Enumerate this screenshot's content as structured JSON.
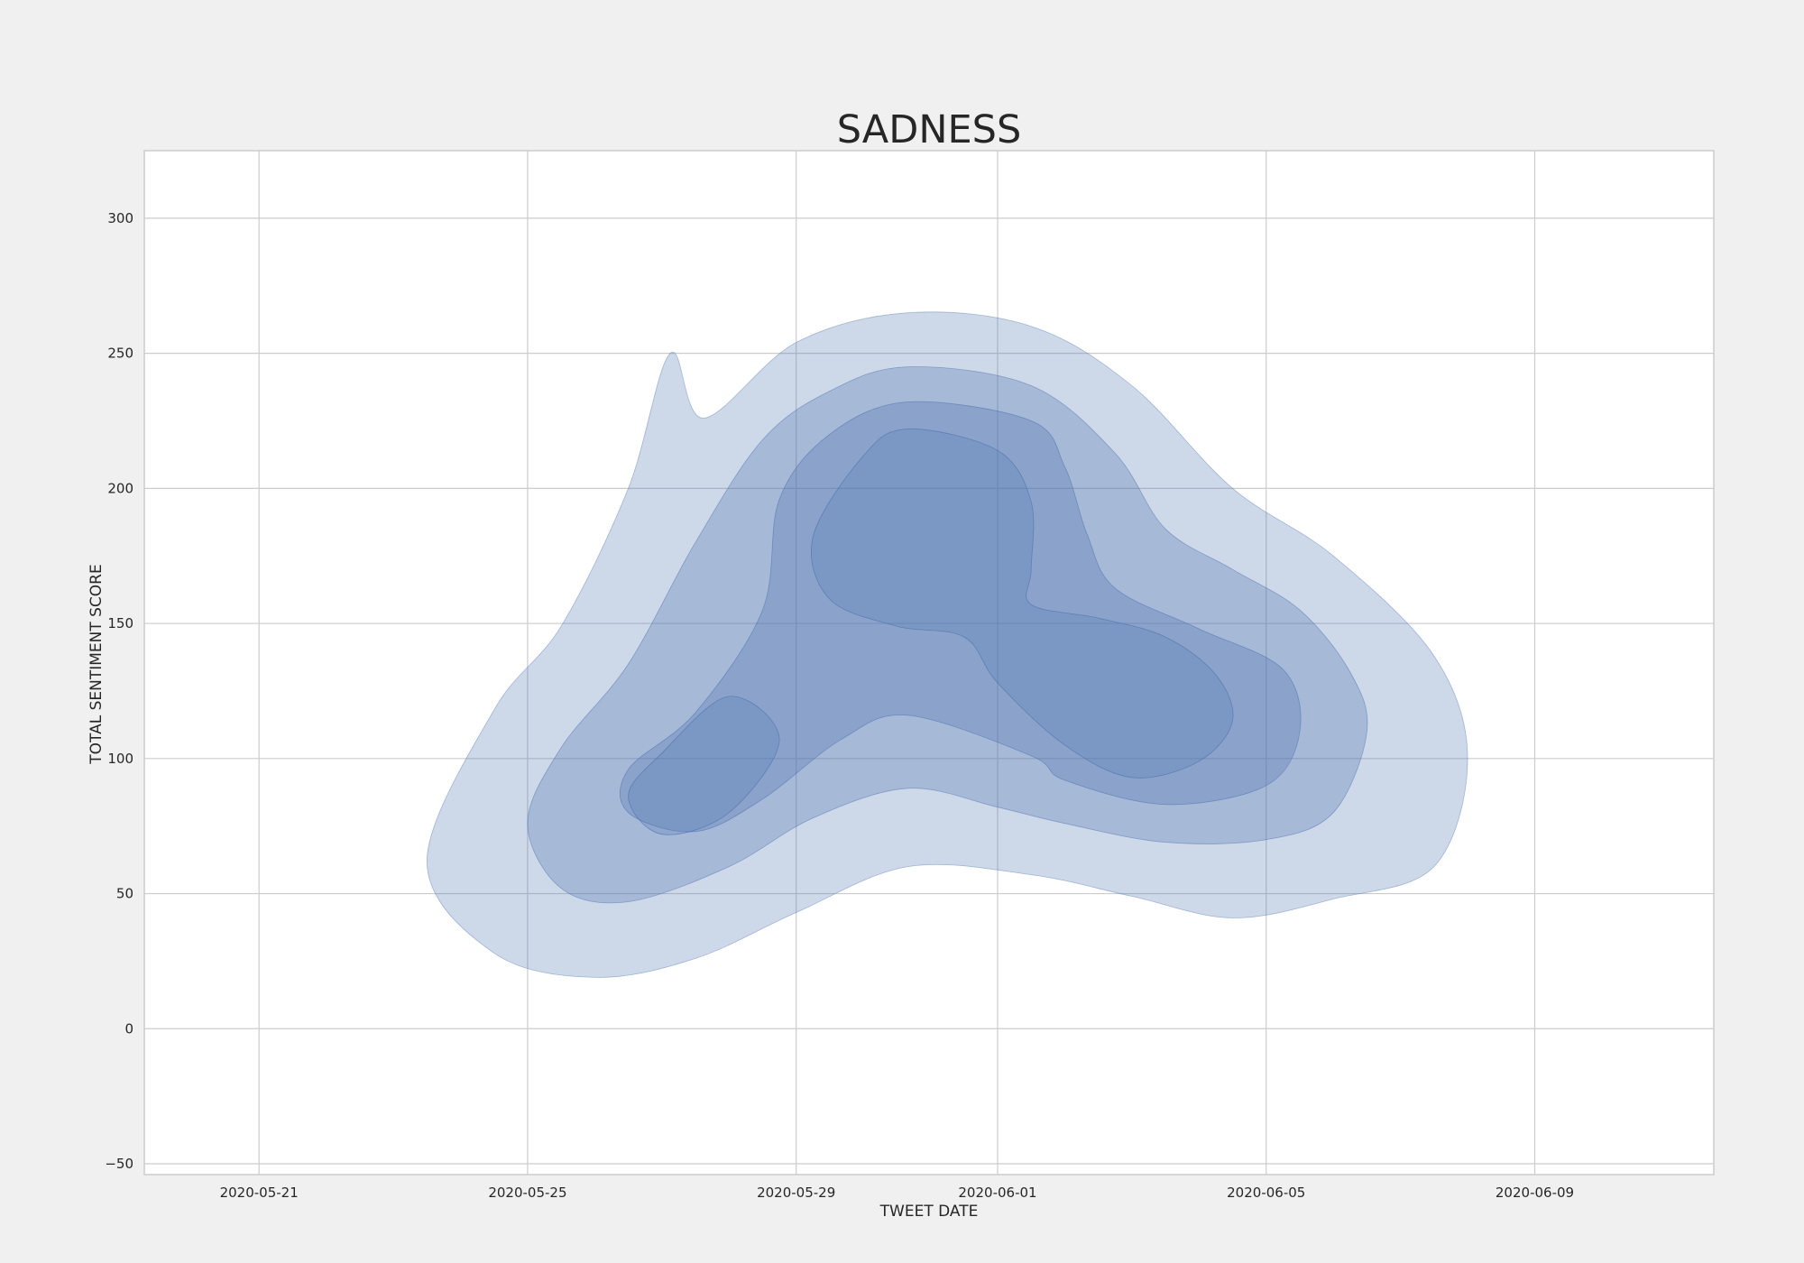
{
  "chart_data": {
    "type": "kde_contour",
    "title": "SADNESS",
    "xlabel": "TWEET DATE",
    "ylabel": "TOTAL SENTIMENT SCORE",
    "x_ticks": [
      "2020-05-21",
      "2020-05-25",
      "2020-05-29",
      "2020-06-01",
      "2020-06-05",
      "2020-06-09"
    ],
    "y_ticks": [
      -50,
      0,
      50,
      100,
      150,
      200,
      250,
      300
    ],
    "xlim": [
      "2020-05-19 07:00",
      "2020-06-11 16:00"
    ],
    "ylim": [
      -54,
      325
    ],
    "grid": true,
    "fill_color": "#4c72b0",
    "contours": [
      {
        "level": 1,
        "opacity": 0.28,
        "polygons": [
          [
            [
              "2020-05-27 03:00",
              250
            ],
            [
              "2020-05-27 15:00",
              226
            ],
            [
              "2020-05-29 00:00",
              254
            ],
            [
              "2020-05-30 16:00",
              265
            ],
            [
              "2020-06-01 12:00",
              260
            ],
            [
              "2020-06-03 00:00",
              238
            ],
            [
              "2020-06-04 12:00",
              200
            ],
            [
              "2020-06-06 00:00",
              175
            ],
            [
              "2020-06-07 12:00",
              138
            ],
            [
              "2020-06-08 00:00",
              100
            ],
            [
              "2020-06-07 12:00",
              60
            ],
            [
              "2020-06-06 00:00",
              48
            ],
            [
              "2020-06-04 12:00",
              41
            ],
            [
              "2020-06-03 00:00",
              49
            ],
            [
              "2020-06-01 12:00",
              57
            ],
            [
              "2020-05-30 16:00",
              60
            ],
            [
              "2020-05-29 00:00",
              43
            ],
            [
              "2020-05-27 12:00",
              26
            ],
            [
              "2020-05-26 00:00",
              19
            ],
            [
              "2020-05-24 12:00",
              28
            ],
            [
              "2020-05-23 12:00",
              62
            ],
            [
              "2020-05-24 12:00",
              118
            ],
            [
              "2020-05-25 12:00",
              149
            ],
            [
              "2020-05-26 12:00",
              200
            ]
          ]
        ]
      },
      {
        "level": 2,
        "opacity": 0.3,
        "polygons": [
          [
            [
              "2020-05-27 12:00",
              180
            ],
            [
              "2020-05-28 12:00",
              218
            ],
            [
              "2020-05-29 12:00",
              236
            ],
            [
              "2020-05-30 16:00",
              245
            ],
            [
              "2020-06-01 12:00",
              238
            ],
            [
              "2020-06-02 18:00",
              213
            ],
            [
              "2020-06-03 12:00",
              185
            ],
            [
              "2020-06-04 12:00",
              170
            ],
            [
              "2020-06-05 12:00",
              155
            ],
            [
              "2020-06-06 06:00",
              132
            ],
            [
              "2020-06-06 12:00",
              110
            ],
            [
              "2020-06-06 00:00",
              80
            ],
            [
              "2020-06-05 00:00",
              70
            ],
            [
              "2020-06-03 12:00",
              69
            ],
            [
              "2020-06-02 00:00",
              76
            ],
            [
              "2020-06-01 00:00",
              82
            ],
            [
              "2020-05-30 16:00",
              89
            ],
            [
              "2020-05-29 06:00",
              78
            ],
            [
              "2020-05-28 00:00",
              60
            ],
            [
              "2020-05-26 12:00",
              47
            ],
            [
              "2020-05-25 12:00",
              52
            ],
            [
              "2020-05-25 00:00",
              76
            ],
            [
              "2020-05-25 12:00",
              104
            ],
            [
              "2020-05-26 12:00",
              135
            ]
          ]
        ]
      },
      {
        "level": 3,
        "opacity": 0.3,
        "polygons": [
          [
            [
              "2020-05-28 12:00",
              155
            ],
            [
              "2020-05-28 18:00",
              196
            ],
            [
              "2020-05-29 12:00",
              220
            ],
            [
              "2020-05-30 16:00",
              232
            ],
            [
              "2020-06-01 12:00",
              225
            ],
            [
              "2020-06-02 00:00",
              208
            ],
            [
              "2020-06-02 08:00",
              183
            ],
            [
              "2020-06-02 18:00",
              163
            ],
            [
              "2020-06-04 00:00",
              148
            ],
            [
              "2020-06-05 06:00",
              133
            ],
            [
              "2020-06-05 12:00",
              110
            ],
            [
              "2020-06-05 00:00",
              90
            ],
            [
              "2020-06-03 12:00",
              83
            ],
            [
              "2020-06-02 00:00",
              92
            ],
            [
              "2020-06-01 12:00",
              101
            ],
            [
              "2020-05-30 16:00",
              116
            ],
            [
              "2020-05-29 16:00",
              107
            ],
            [
              "2020-05-28 12:00",
              85
            ],
            [
              "2020-05-27 12:00",
              73
            ],
            [
              "2020-05-26 12:00",
              80
            ],
            [
              "2020-05-26 12:00",
              96
            ],
            [
              "2020-05-27 12:00",
              117
            ]
          ]
        ]
      },
      {
        "level": 4,
        "opacity": 0.25,
        "polygons": [
          [
            [
              "2020-05-30 00:00",
              212
            ],
            [
              "2020-05-30 16:00",
              222
            ],
            [
              "2020-06-01 00:00",
              214
            ],
            [
              "2020-06-01 12:00",
              195
            ],
            [
              "2020-06-01 12:00",
              170
            ],
            [
              "2020-06-01 12:00",
              157
            ],
            [
              "2020-06-02 12:00",
              152
            ],
            [
              "2020-06-03 12:00",
              145
            ],
            [
              "2020-06-04 06:00",
              131
            ],
            [
              "2020-06-04 12:00",
              114
            ],
            [
              "2020-06-04 00:00",
              99
            ],
            [
              "2020-06-03 00:00",
              93
            ],
            [
              "2020-06-02 00:00",
              105
            ],
            [
              "2020-06-01 00:00",
              128
            ],
            [
              "2020-05-31 12:00",
              145
            ],
            [
              "2020-05-30 12:00",
              149
            ],
            [
              "2020-05-29 12:00",
              159
            ],
            [
              "2020-05-29 06:00",
              182
            ]
          ],
          [
            [
              "2020-05-28 00:00",
              123
            ],
            [
              "2020-05-27 00:00",
              102
            ],
            [
              "2020-05-26 12:00",
              86
            ],
            [
              "2020-05-27 00:00",
              72
            ],
            [
              "2020-05-28 00:00",
              80
            ],
            [
              "2020-05-28 18:00",
              107
            ]
          ]
        ]
      }
    ]
  }
}
